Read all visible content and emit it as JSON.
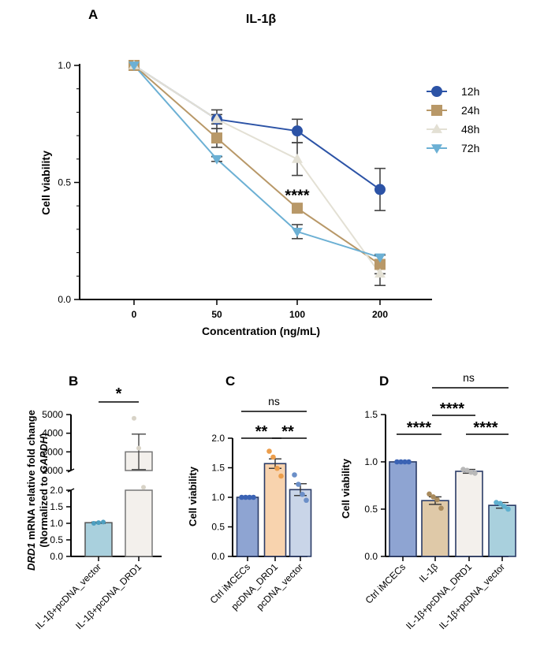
{
  "chart_data": [
    {
      "panel": "A",
      "type": "line",
      "title": "IL-1β",
      "xlabel": "Concentration (ng/mL)",
      "ylabel": "Cell viability",
      "categories": [
        "0",
        "50",
        "100",
        "200"
      ],
      "ylim": [
        0,
        1.0
      ],
      "yticks": [
        "0.0",
        "0.5",
        "1.0"
      ],
      "series": [
        {
          "name": "12h",
          "color": "#2c53a6",
          "marker": "circle",
          "values": [
            1.0,
            0.77,
            0.72,
            0.47
          ],
          "errors": [
            0,
            0.02,
            0.05,
            0.09
          ]
        },
        {
          "name": "24h",
          "color": "#b89868",
          "marker": "square",
          "values": [
            1.0,
            0.69,
            0.39,
            0.15
          ],
          "errors": [
            0,
            0.04,
            0.02,
            0.04
          ]
        },
        {
          "name": "48h",
          "color": "#e3e0d4",
          "marker": "triangle-up",
          "values": [
            1.0,
            0.77,
            0.6,
            0.11
          ],
          "errors": [
            0,
            0.04,
            0.07,
            0.05
          ]
        },
        {
          "name": "72h",
          "color": "#6cb0d4",
          "marker": "triangle-down",
          "values": [
            1.0,
            0.6,
            0.29,
            0.18
          ],
          "errors": [
            0,
            0.01,
            0.03,
            0.01
          ]
        }
      ],
      "annotations": [
        {
          "text": "****",
          "category": "100",
          "y": 0.46
        }
      ]
    },
    {
      "panel": "B",
      "type": "bar",
      "ylabel_italic": "DRD1",
      "ylabel_rest": " mRNA relative fold change",
      "ylabel2_prefix": "(Normalized to ",
      "ylabel2_italic": "GAPDH",
      "ylabel2_suffix": ")",
      "categories": [
        "IL-1β+pcDNA_vector",
        "IL-1β+pcDNA_DRD1"
      ],
      "values": [
        1.02,
        3000
      ],
      "errors": [
        0.02,
        950
      ],
      "colors": [
        "#a9d0dd",
        "#f3f0ec"
      ],
      "points": [
        [
          1.0,
          1.02,
          1.04
        ],
        [
          4800,
          3200,
          1100
        ]
      ],
      "axis_break": {
        "lower": [
          0,
          2.0
        ],
        "upper": [
          2000,
          5000
        ]
      },
      "yticks_lower": [
        "0.0",
        "0.5",
        "1.0",
        "1.5",
        "2.0"
      ],
      "yticks_upper": [
        "2000",
        "3000",
        "4000",
        "5000"
      ],
      "significance": [
        {
          "text": "*",
          "from": 0,
          "to": 1
        }
      ]
    },
    {
      "panel": "C",
      "type": "bar",
      "ylabel": "Cell viability",
      "categories": [
        "Ctrl iMCECs",
        "pcDNA_DRD1",
        "pcDNA_vector"
      ],
      "values": [
        1.0,
        1.57,
        1.13
      ],
      "errors": [
        0.0,
        0.08,
        0.1
      ],
      "colors": [
        "#8ea4d2",
        "#f8d3ae",
        "#c9d5e8"
      ],
      "points": [
        [
          1.0,
          1.0,
          1.0,
          1.0
        ],
        [
          1.78,
          1.68,
          1.49,
          1.36
        ],
        [
          1.38,
          1.22,
          1.05,
          0.95
        ]
      ],
      "point_colors": [
        "#3b63b4",
        "#ec9e4c",
        "#6b8fc8"
      ],
      "ylim": [
        0,
        2.0
      ],
      "yticks": [
        "0.0",
        "0.5",
        "1.0",
        "1.5",
        "2.0"
      ],
      "significance": [
        {
          "text": "ns",
          "from": 0,
          "to": 2
        },
        {
          "text": "**",
          "from": 0,
          "to": 1
        },
        {
          "text": "**",
          "from": 1,
          "to": 2
        }
      ]
    },
    {
      "panel": "D",
      "type": "bar",
      "ylabel": "Cell viability",
      "categories": [
        "Ctrl iMCECs",
        "IL-1β",
        "IL-1β+pcDNA_DRD1",
        "IL-1β+pcDNA_vector"
      ],
      "values": [
        1.0,
        0.59,
        0.9,
        0.54
      ],
      "errors": [
        0.0,
        0.04,
        0.02,
        0.03
      ],
      "colors": [
        "#8ea4d2",
        "#dfc9a8",
        "#f3f0ec",
        "#a9d0dd"
      ],
      "points": [
        [
          1.0,
          1.0,
          1.0,
          1.0
        ],
        [
          0.66,
          0.63,
          0.6,
          0.51
        ],
        [
          0.92,
          0.91,
          0.89,
          0.88
        ],
        [
          0.57,
          0.56,
          0.53,
          0.5
        ]
      ],
      "point_colors": [
        "#3b63b4",
        "#a88a5c",
        "#b8b8b8",
        "#5fb0cf"
      ],
      "ylim": [
        0,
        1.5
      ],
      "yticks": [
        "0.0",
        "0.5",
        "1.0",
        "1.5"
      ],
      "significance": [
        {
          "text": "ns",
          "from": 1,
          "to": 3
        },
        {
          "text": "****",
          "from": 1,
          "to": 2
        },
        {
          "text": "****",
          "from": 0,
          "to": 1
        },
        {
          "text": "****",
          "from": 2,
          "to": 3
        }
      ]
    }
  ]
}
